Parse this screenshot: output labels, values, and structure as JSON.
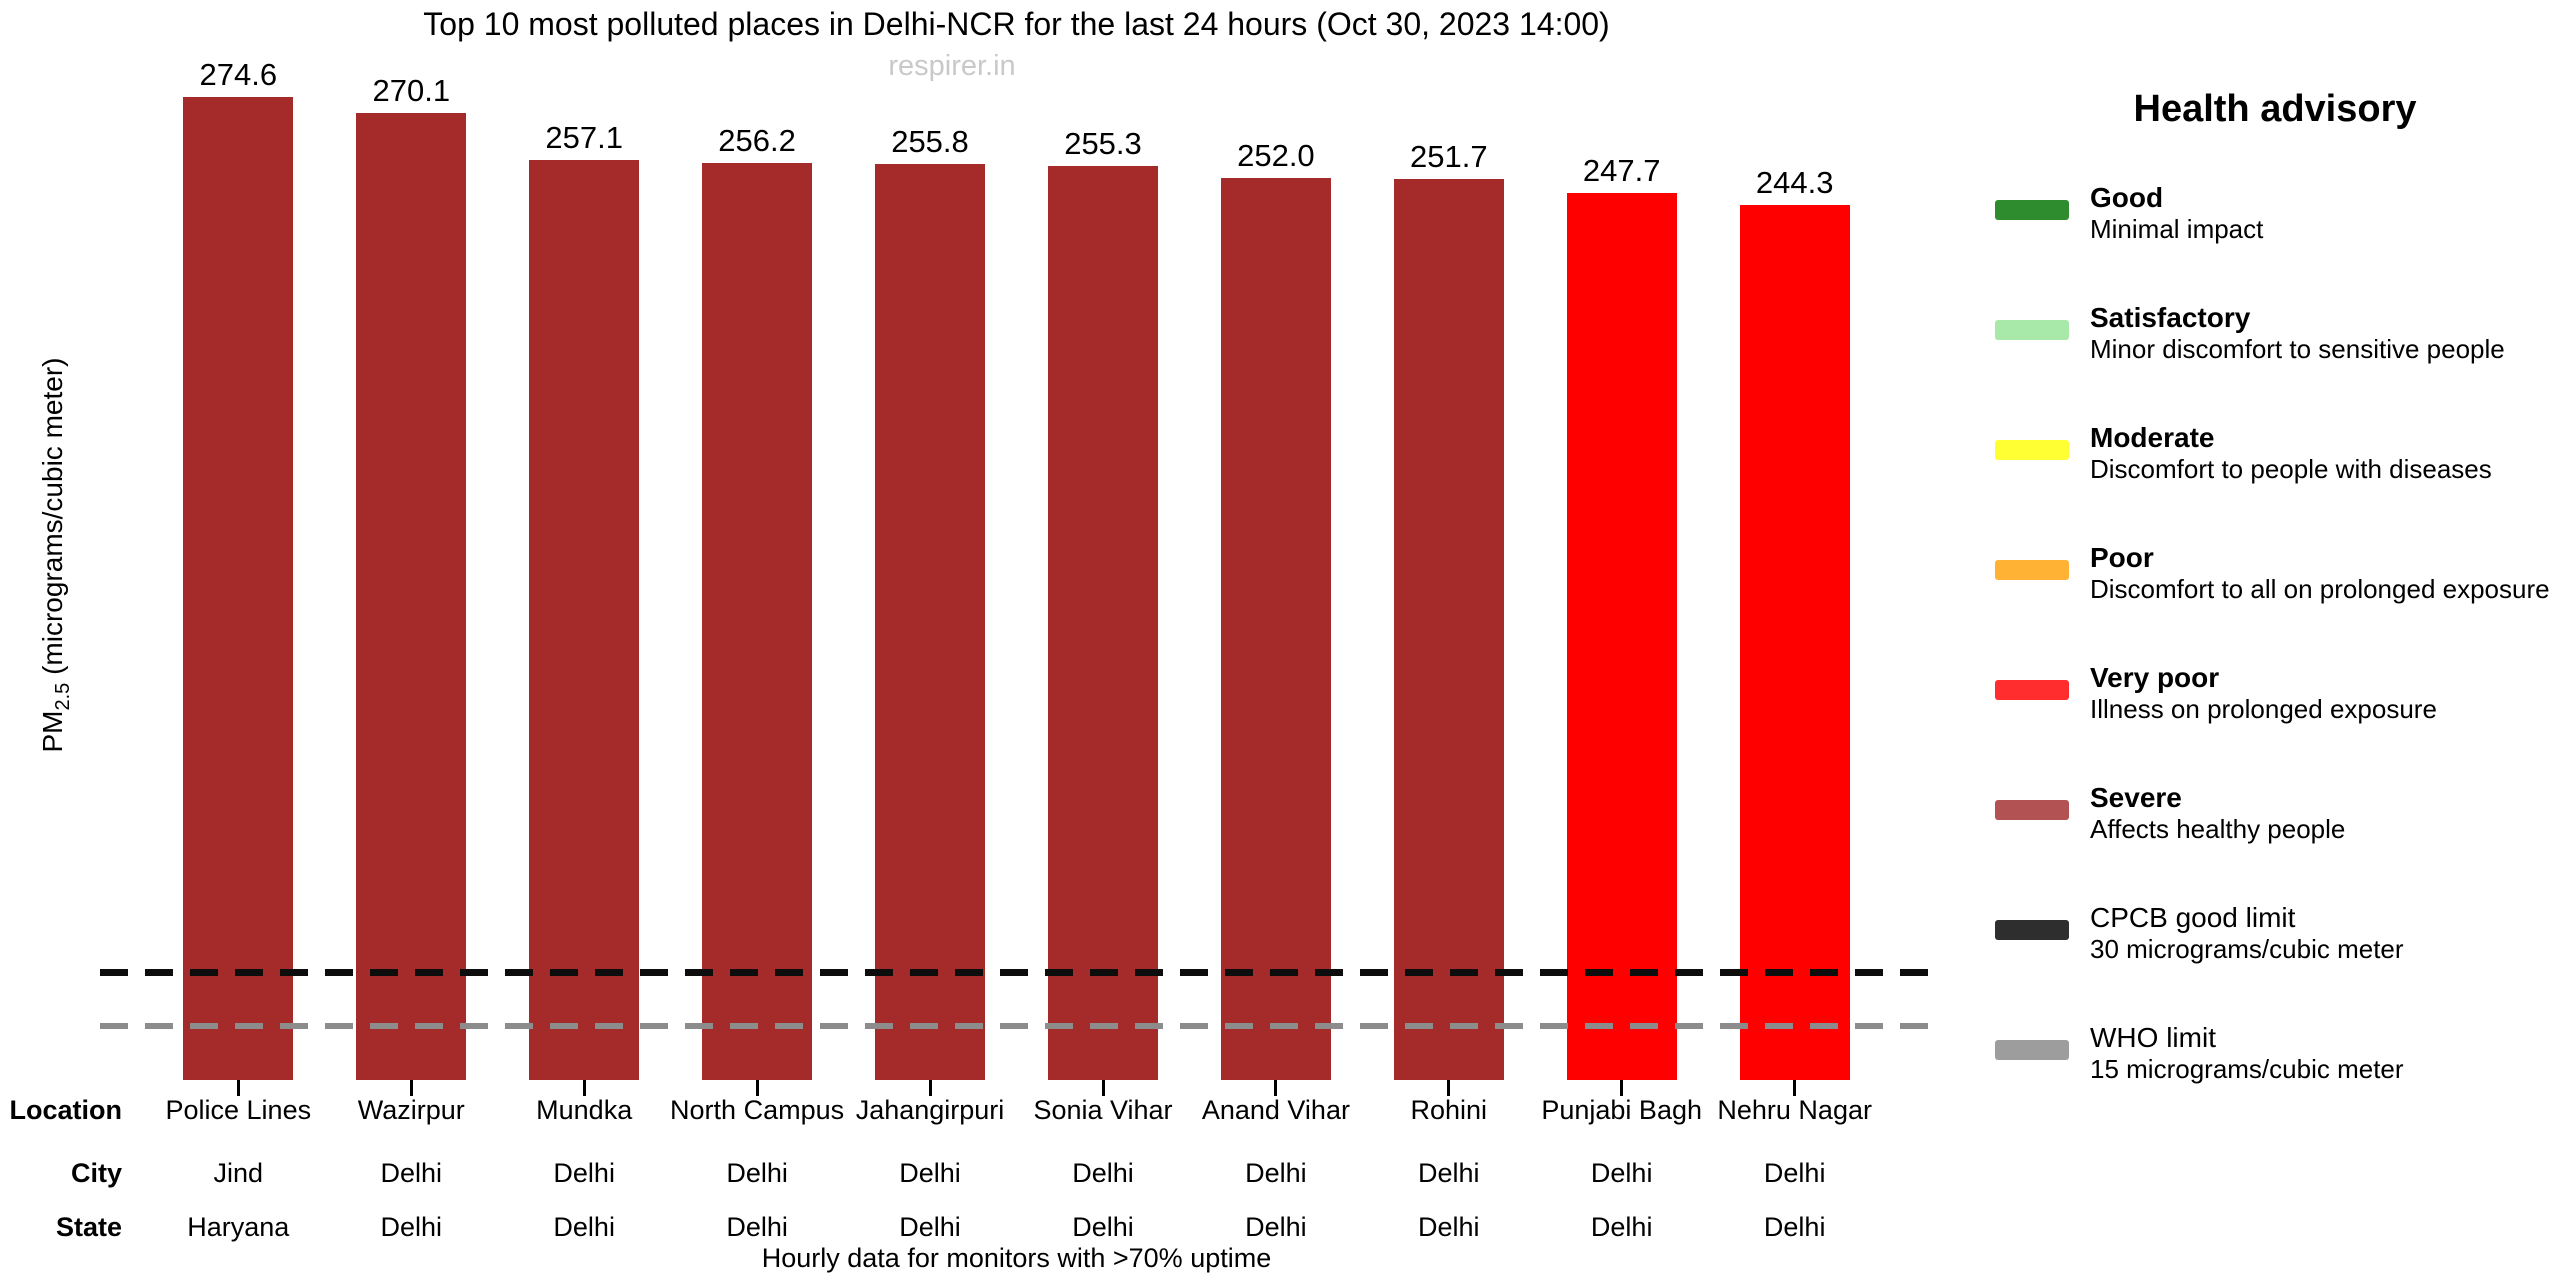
{
  "chart_data": {
    "type": "bar",
    "title": "Top 10 most polluted places in Delhi-NCR for the last 24 hours (Oct 30, 2023 14:00)",
    "watermark": "respirer.in",
    "ylabel": {
      "prefix": "PM",
      "sub": "2.5",
      "suffix": " (micrograms/cubic meter)"
    },
    "footnote": "Hourly data for monitors with >70% uptime",
    "ylim": [
      0,
      280
    ],
    "grid": false,
    "legend_position": "right",
    "row_headers": {
      "location": "Location",
      "city": "City",
      "state": "State"
    },
    "categories": [
      "Police Lines",
      "Wazirpur",
      "Mundka",
      "North Campus",
      "Jahangirpuri",
      "Sonia Vihar",
      "Anand Vihar",
      "Rohini",
      "Punjabi Bagh",
      "Nehru Nagar"
    ],
    "values": [
      274.6,
      270.1,
      257.1,
      256.2,
      255.8,
      255.3,
      252.0,
      251.7,
      247.7,
      244.3
    ],
    "value_labels": [
      "274.6",
      "270.1",
      "257.1",
      "256.2",
      "255.8",
      "255.3",
      "252.0",
      "251.7",
      "247.7",
      "244.3"
    ],
    "city": [
      "Jind",
      "Delhi",
      "Delhi",
      "Delhi",
      "Delhi",
      "Delhi",
      "Delhi",
      "Delhi",
      "Delhi",
      "Delhi"
    ],
    "state": [
      "Haryana",
      "Delhi",
      "Delhi",
      "Delhi",
      "Delhi",
      "Delhi",
      "Delhi",
      "Delhi",
      "Delhi",
      "Delhi"
    ],
    "aqi_category": [
      "severe",
      "severe",
      "severe",
      "severe",
      "severe",
      "severe",
      "severe",
      "severe",
      "very_poor",
      "very_poor"
    ],
    "colors": {
      "severe": "#a52a2a",
      "very_poor": "#ff0000"
    },
    "limits": [
      {
        "name": "CPCB good limit",
        "value": 30,
        "color": "#0d0d0d",
        "thickness": 7
      },
      {
        "name": "WHO limit",
        "value": 15,
        "color": "#8c8c8c",
        "thickness": 6
      }
    ]
  },
  "legend": {
    "title": "Health advisory",
    "items": [
      {
        "label": "Good",
        "desc": "Minimal impact",
        "color": "#2e8b2e",
        "bold": true
      },
      {
        "label": "Satisfactory",
        "desc": "Minor discomfort to sensitive people",
        "color": "#a8e8a8",
        "bold": true
      },
      {
        "label": "Moderate",
        "desc": "Discomfort to people with diseases",
        "color": "#ffff33",
        "bold": true
      },
      {
        "label": "Poor",
        "desc": "Discomfort to all on prolonged exposure",
        "color": "#ffb233",
        "bold": true
      },
      {
        "label": "Very poor",
        "desc": "Illness on prolonged exposure",
        "color": "#ff2d2d",
        "bold": true
      },
      {
        "label": "Severe",
        "desc": "Affects healthy people",
        "color": "#b25252",
        "bold": true
      },
      {
        "label": "CPCB good limit",
        "desc": "30 micrograms/cubic meter",
        "color": "#2e2e2e",
        "bold": false
      },
      {
        "label": "WHO limit",
        "desc": "15 micrograms/cubic meter",
        "color": "#9d9d9d",
        "bold": false
      }
    ]
  }
}
